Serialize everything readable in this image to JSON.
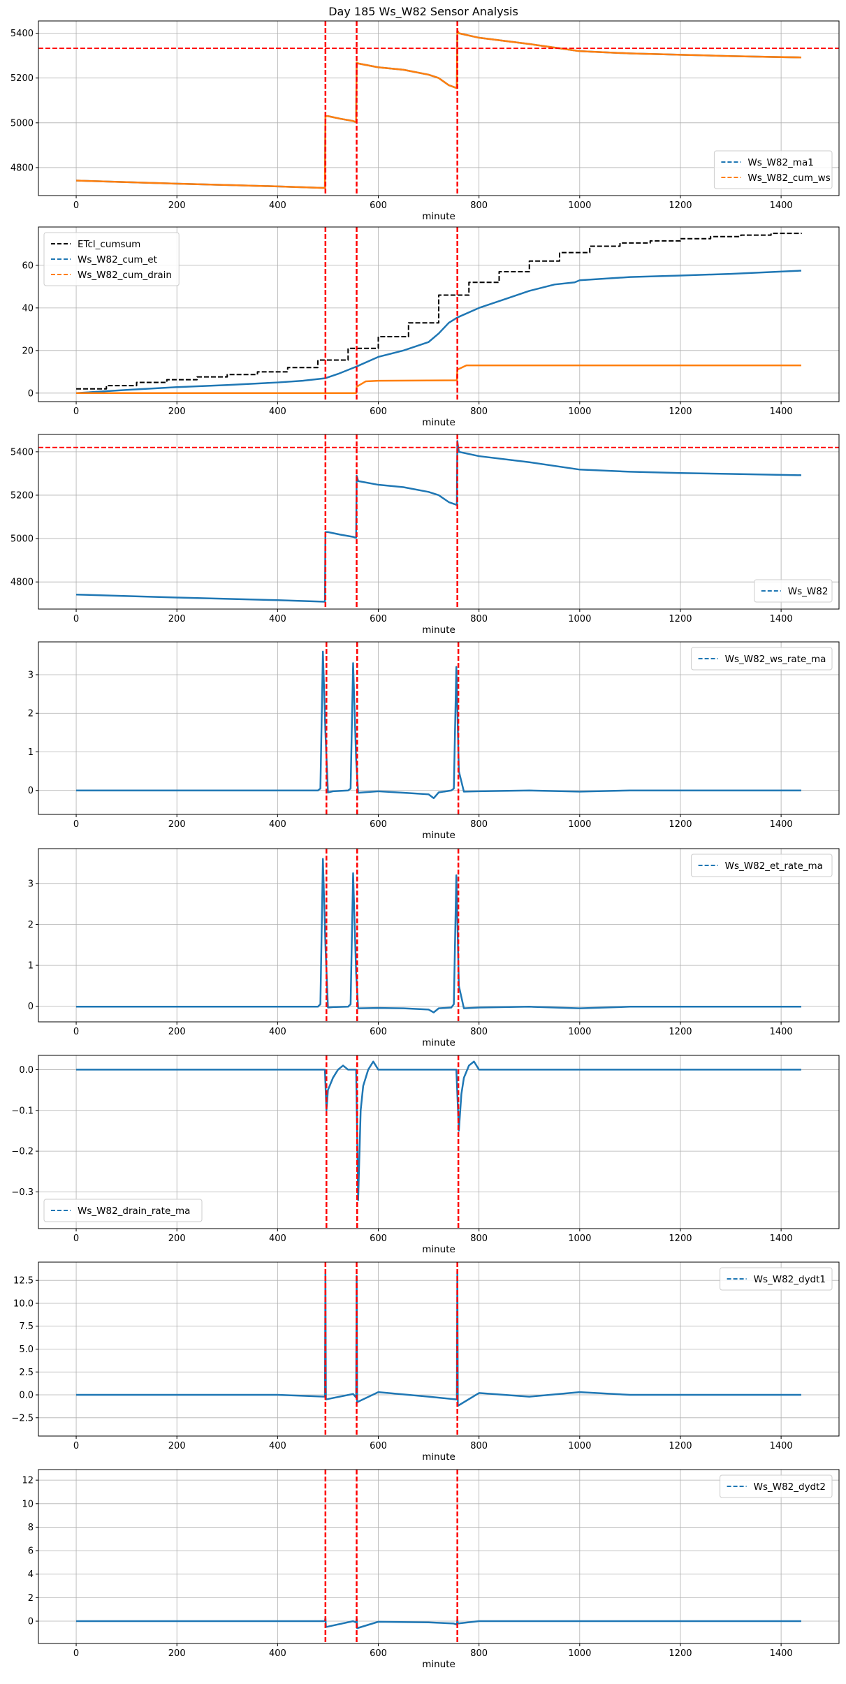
{
  "title": "Day 185 Ws_W82 Sensor Analysis",
  "colors": {
    "blue": "#1f77b4",
    "orange": "#ff7f0e",
    "black": "#000000",
    "red": "#ff0000",
    "grid": "#b0b0b0"
  },
  "chart_data": [
    {
      "type": "line",
      "xlabel": "minute",
      "xlim": [
        -75,
        1515
      ],
      "ylim": [
        4675,
        5455
      ],
      "xticks": [
        0,
        200,
        400,
        600,
        800,
        1000,
        1200,
        1400
      ],
      "yticks": [
        4800,
        5000,
        5200,
        5400
      ],
      "grid": true,
      "legend_position": "lower-right",
      "vlines": [
        495,
        557,
        757
      ],
      "hlines": [
        5333
      ],
      "series": [
        {
          "name": "Ws_W82_ma1",
          "color": "blue",
          "x": [
            0,
            100,
            200,
            300,
            400,
            494,
            495,
            500,
            525,
            550,
            556,
            557,
            560,
            600,
            650,
            700,
            720,
            740,
            756,
            757,
            760,
            800,
            900,
            1000,
            1100,
            1200,
            1300,
            1440
          ],
          "y": [
            4742,
            4735,
            4728,
            4722,
            4716,
            4709,
            5030,
            5030,
            5018,
            5008,
            5003,
            5270,
            5265,
            5248,
            5237,
            5215,
            5200,
            5168,
            5155,
            5412,
            5400,
            5380,
            5352,
            5320,
            5310,
            5304,
            5298,
            5292
          ]
        },
        {
          "name": "Ws_W82_cum_ws",
          "color": "orange",
          "x": [
            0,
            100,
            200,
            300,
            400,
            494,
            495,
            500,
            525,
            550,
            556,
            557,
            560,
            600,
            650,
            700,
            720,
            740,
            756,
            757,
            760,
            800,
            900,
            1000,
            1100,
            1200,
            1300,
            1440
          ],
          "y": [
            4742,
            4735,
            4728,
            4722,
            4716,
            4709,
            5030,
            5030,
            5018,
            5008,
            5003,
            5270,
            5265,
            5248,
            5237,
            5215,
            5200,
            5168,
            5155,
            5412,
            5400,
            5380,
            5352,
            5320,
            5310,
            5304,
            5298,
            5292
          ]
        }
      ]
    },
    {
      "type": "line",
      "xlabel": "minute",
      "xlim": [
        -75,
        1515
      ],
      "ylim": [
        -4,
        78
      ],
      "xticks": [
        0,
        200,
        400,
        600,
        800,
        1000,
        1200,
        1400
      ],
      "yticks": [
        0,
        20,
        40,
        60
      ],
      "grid": true,
      "legend_position": "upper-left",
      "vlines": [
        495,
        557,
        757
      ],
      "hlines": [],
      "series": [
        {
          "name": "ETcl_cumsum",
          "color": "black",
          "step": true,
          "x": [
            0,
            60,
            120,
            180,
            240,
            300,
            360,
            420,
            480,
            540,
            600,
            660,
            720,
            780,
            840,
            900,
            960,
            1020,
            1080,
            1140,
            1200,
            1260,
            1320,
            1380,
            1440
          ],
          "y": [
            2,
            3.5,
            5,
            6.3,
            7.6,
            8.7,
            10,
            12,
            15.5,
            21,
            26.5,
            33,
            46,
            52,
            57,
            62,
            66,
            69,
            70.5,
            71.5,
            72.5,
            73.5,
            74.2,
            75,
            75.2
          ]
        },
        {
          "name": "Ws_W82_cum_et",
          "color": "blue",
          "x": [
            0,
            100,
            200,
            300,
            400,
            450,
            495,
            520,
            557,
            600,
            650,
            700,
            720,
            740,
            757,
            800,
            850,
            900,
            950,
            990,
            1000,
            1100,
            1200,
            1300,
            1440
          ],
          "y": [
            0,
            1.5,
            2.8,
            3.8,
            5,
            5.8,
            7,
            9,
            12.5,
            17,
            20,
            24,
            28,
            33,
            35.5,
            40,
            44,
            48,
            51,
            52,
            53,
            54.5,
            55.2,
            56,
            57.5
          ]
        },
        {
          "name": "Ws_W82_cum_drain",
          "color": "orange",
          "x": [
            0,
            556,
            557,
            575,
            600,
            756,
            757,
            775,
            1440
          ],
          "y": [
            0,
            0,
            3,
            5.5,
            5.8,
            6,
            11,
            13,
            13
          ]
        }
      ]
    },
    {
      "type": "line",
      "xlabel": "minute",
      "xlim": [
        -75,
        1515
      ],
      "ylim": [
        4675,
        5480
      ],
      "xticks": [
        0,
        200,
        400,
        600,
        800,
        1000,
        1200,
        1400
      ],
      "yticks": [
        4800,
        5000,
        5200,
        5400
      ],
      "grid": true,
      "legend_position": "lower-right",
      "vlines": [
        495,
        557,
        757
      ],
      "hlines": [
        5420
      ],
      "series": [
        {
          "name": "Ws_W82",
          "color": "blue",
          "x": [
            0,
            100,
            200,
            300,
            400,
            494,
            495,
            500,
            525,
            550,
            556,
            557,
            560,
            600,
            650,
            700,
            720,
            740,
            756,
            757,
            760,
            800,
            900,
            1000,
            1100,
            1200,
            1300,
            1440
          ],
          "y": [
            4742,
            4735,
            4728,
            4722,
            4716,
            4709,
            5030,
            5030,
            5018,
            5008,
            5003,
            5290,
            5265,
            5248,
            5237,
            5215,
            5200,
            5168,
            5155,
            5450,
            5400,
            5380,
            5352,
            5318,
            5308,
            5302,
            5298,
            5292
          ]
        }
      ]
    },
    {
      "type": "line",
      "xlabel": "minute",
      "xlim": [
        -75,
        1515
      ],
      "ylim": [
        -0.62,
        3.85
      ],
      "xticks": [
        0,
        200,
        400,
        600,
        800,
        1000,
        1200,
        1400
      ],
      "yticks": [
        0,
        1,
        2,
        3
      ],
      "grid": true,
      "legend_position": "upper-right",
      "vlines": [
        497,
        558,
        759
      ],
      "hlines": [],
      "series": [
        {
          "name": "Ws_W82_ws_rate_ma",
          "color": "blue",
          "x": [
            0,
            480,
            485,
            490,
            495,
            500,
            510,
            540,
            545,
            550,
            556,
            560,
            600,
            650,
            700,
            710,
            720,
            745,
            750,
            755,
            760,
            770,
            800,
            900,
            1000,
            1100,
            1200,
            1440
          ],
          "y": [
            0,
            0,
            0.05,
            3.6,
            1.5,
            -0.05,
            -0.02,
            0,
            0.05,
            3.3,
            0.8,
            -0.06,
            -0.02,
            -0.06,
            -0.1,
            -0.2,
            -0.05,
            0,
            0.05,
            3.2,
            0.5,
            -0.03,
            -0.02,
            0,
            -0.03,
            0,
            0,
            0
          ]
        }
      ]
    },
    {
      "type": "line",
      "xlabel": "minute",
      "xlim": [
        -75,
        1515
      ],
      "ylim": [
        -0.38,
        3.85
      ],
      "xticks": [
        0,
        200,
        400,
        600,
        800,
        1000,
        1200,
        1400
      ],
      "yticks": [
        0,
        1,
        2,
        3
      ],
      "grid": true,
      "legend_position": "upper-right",
      "vlines": [
        497,
        558,
        759
      ],
      "hlines": [],
      "series": [
        {
          "name": "Ws_W82_et_rate_ma",
          "color": "blue",
          "x": [
            0,
            480,
            485,
            490,
            495,
            500,
            510,
            540,
            545,
            550,
            556,
            560,
            600,
            650,
            700,
            710,
            720,
            745,
            750,
            755,
            760,
            770,
            800,
            900,
            1000,
            1100,
            1200,
            1440
          ],
          "y": [
            -0.01,
            -0.01,
            0.05,
            3.6,
            1.5,
            -0.03,
            -0.02,
            -0.01,
            0.05,
            3.25,
            0.8,
            -0.05,
            -0.04,
            -0.05,
            -0.08,
            -0.15,
            -0.05,
            -0.03,
            0.05,
            3.2,
            0.5,
            -0.05,
            -0.03,
            -0.01,
            -0.05,
            -0.01,
            -0.01,
            -0.01
          ]
        }
      ]
    },
    {
      "type": "line",
      "xlabel": "minute",
      "xlim": [
        -75,
        1515
      ],
      "ylim": [
        -0.39,
        0.035
      ],
      "xticks": [
        0,
        200,
        400,
        600,
        800,
        1000,
        1200,
        1400
      ],
      "yticks": [
        0.0,
        -0.1,
        -0.2,
        -0.3
      ],
      "grid": true,
      "legend_position": "lower-left",
      "vlines": [
        497,
        558,
        759
      ],
      "hlines": [],
      "series": [
        {
          "name": "Ws_W82_drain_rate_ma",
          "color": "blue",
          "x": [
            0,
            494,
            497,
            500,
            510,
            520,
            530,
            540,
            550,
            556,
            560,
            565,
            570,
            580,
            590,
            600,
            755,
            760,
            765,
            770,
            780,
            790,
            800,
            1440
          ],
          "y": [
            0,
            0,
            -0.1,
            -0.05,
            -0.02,
            0,
            0.01,
            0,
            0,
            0,
            -0.32,
            -0.1,
            -0.04,
            0,
            0.02,
            0,
            0,
            -0.15,
            -0.06,
            -0.02,
            0.01,
            0.02,
            0,
            0
          ]
        }
      ]
    },
    {
      "type": "line",
      "xlabel": "minute",
      "xlim": [
        -75,
        1515
      ],
      "ylim": [
        -4.5,
        14.5
      ],
      "xticks": [
        0,
        200,
        400,
        600,
        800,
        1000,
        1200,
        1400
      ],
      "yticks": [
        -2.5,
        0.0,
        2.5,
        5.0,
        7.5,
        10.0,
        12.5
      ],
      "grid": true,
      "legend_position": "upper-right",
      "vlines": [
        495,
        557,
        757
      ],
      "hlines": [],
      "series": [
        {
          "name": "Ws_W82_dydt1",
          "color": "blue",
          "x": [
            0,
            200,
            400,
            494,
            495,
            496,
            550,
            556,
            557,
            558,
            600,
            700,
            756,
            757,
            758,
            800,
            900,
            1000,
            1100,
            1200,
            1300,
            1440
          ],
          "y": [
            0,
            0,
            0,
            -0.2,
            13.2,
            -0.5,
            0.1,
            -0.3,
            13,
            -0.8,
            0.3,
            -0.2,
            -0.5,
            13.5,
            -1.2,
            0.2,
            -0.2,
            0.3,
            0,
            0,
            0,
            0
          ]
        }
      ]
    },
    {
      "type": "line",
      "xlabel": "minute",
      "xlim": [
        -75,
        1515
      ],
      "ylim": [
        -1.9,
        12.9
      ],
      "xticks": [
        0,
        200,
        400,
        600,
        800,
        1000,
        1200,
        1400
      ],
      "yticks": [
        0,
        2,
        4,
        6,
        8,
        10,
        12
      ],
      "grid": true,
      "legend_position": "upper-right",
      "vlines": [
        495,
        557,
        757
      ],
      "hlines": [],
      "series": [
        {
          "name": "Ws_W82_dydt2",
          "color": "blue",
          "x": [
            0,
            200,
            400,
            494,
            495,
            496,
            550,
            556,
            557,
            558,
            600,
            700,
            750,
            756,
            757,
            758,
            800,
            1000,
            1200,
            1440
          ],
          "y": [
            0,
            0,
            0,
            0,
            0.3,
            -0.5,
            0,
            -0.1,
            0.2,
            -0.6,
            -0.05,
            -0.1,
            -0.2,
            -0.3,
            0.1,
            -0.2,
            0,
            0,
            0,
            0
          ]
        }
      ]
    }
  ]
}
